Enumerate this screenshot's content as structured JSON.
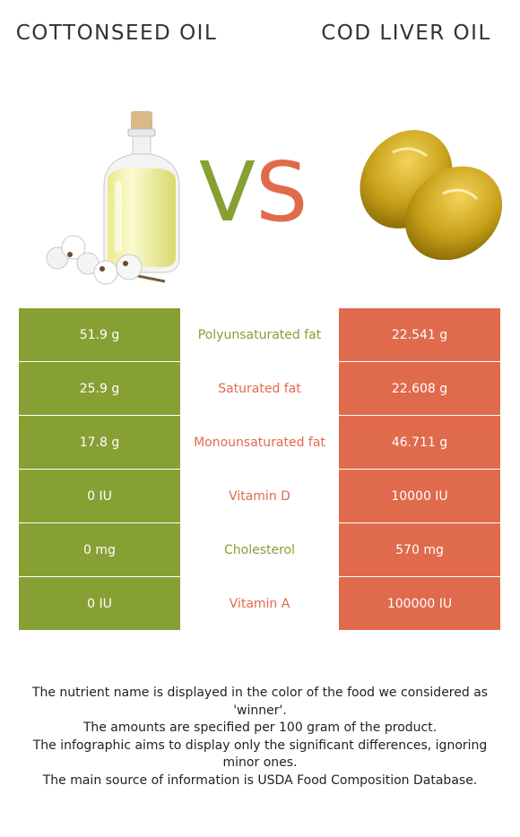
{
  "header": {
    "left_title": "Cottonseed oil",
    "right_title": "Cod liver oil",
    "vs_v": "V",
    "vs_s": "S"
  },
  "colors": {
    "left_accent": "#86a034",
    "right_accent": "#e06a4c"
  },
  "rows": [
    {
      "left": "51.9 g",
      "name": "Polyunsaturated fat",
      "right": "22.541 g",
      "winner": "left"
    },
    {
      "left": "25.9 g",
      "name": "Saturated fat",
      "right": "22.608 g",
      "winner": "right"
    },
    {
      "left": "17.8 g",
      "name": "Monounsaturated fat",
      "right": "46.711 g",
      "winner": "right"
    },
    {
      "left": "0 IU",
      "name": "Vitamin D",
      "right": "10000 IU",
      "winner": "right"
    },
    {
      "left": "0 mg",
      "name": "Cholesterol",
      "right": "570 mg",
      "winner": "left"
    },
    {
      "left": "0 IU",
      "name": "Vitamin A",
      "right": "100000 IU",
      "winner": "right"
    }
  ],
  "footer": {
    "line1": "The nutrient name is displayed in the color of the food we considered as 'winner'.",
    "line2": "The amounts are specified per 100 gram of the product.",
    "line3": "The infographic aims to display only the significant differences, ignoring minor ones.",
    "line4": "The main source of information is USDA Food Composition Database."
  }
}
